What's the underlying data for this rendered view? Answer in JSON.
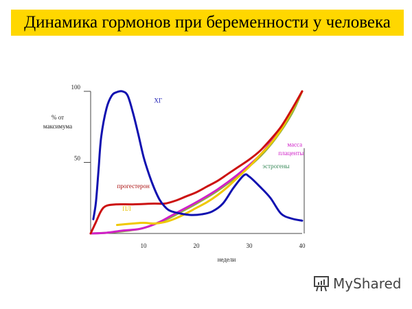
{
  "slide_title": "Динамика гормонов при беременности у человека",
  "watermark": "MyShared",
  "chart_data": {
    "type": "line",
    "title": "",
    "xlabel": "недели",
    "ylabel": "% от максимума",
    "xlim": [
      0,
      40
    ],
    "ylim": [
      0,
      100
    ],
    "x_ticks": [
      "10",
      "20",
      "30",
      "40"
    ],
    "x_tick_values": [
      10,
      20,
      30,
      40
    ],
    "y_ticks": [
      "50",
      "100"
    ],
    "y_tick_values": [
      50,
      100
    ],
    "grid": false,
    "series": [
      {
        "name": "ХГ",
        "color": "#1010b0",
        "points": [
          [
            0.5,
            10
          ],
          [
            1,
            22
          ],
          [
            1.5,
            45
          ],
          [
            2,
            68
          ],
          [
            3,
            88
          ],
          [
            4,
            97
          ],
          [
            5,
            99.5
          ],
          [
            6,
            100
          ],
          [
            7,
            97
          ],
          [
            8,
            85
          ],
          [
            9,
            70
          ],
          [
            10,
            54
          ],
          [
            11,
            42
          ],
          [
            12,
            32
          ],
          [
            13,
            24
          ],
          [
            14,
            19
          ],
          [
            15,
            16
          ],
          [
            17,
            14
          ],
          [
            19,
            13
          ],
          [
            21,
            13.5
          ],
          [
            23,
            15.5
          ],
          [
            25,
            21
          ],
          [
            27,
            32
          ],
          [
            29,
            41
          ],
          [
            30,
            40
          ],
          [
            32,
            33
          ],
          [
            34,
            25
          ],
          [
            36,
            14
          ],
          [
            38,
            10.5
          ],
          [
            40,
            9
          ]
        ]
      },
      {
        "name": "прогестерон",
        "color": "#cc1010",
        "points": [
          [
            0,
            0
          ],
          [
            1,
            8
          ],
          [
            2,
            16
          ],
          [
            3,
            19.5
          ],
          [
            5,
            20.5
          ],
          [
            8,
            20.5
          ],
          [
            12,
            21
          ],
          [
            14,
            21
          ],
          [
            16,
            23
          ],
          [
            18,
            26
          ],
          [
            20,
            29
          ],
          [
            22,
            33
          ],
          [
            24,
            37
          ],
          [
            26,
            42
          ],
          [
            28,
            47
          ],
          [
            30,
            52
          ],
          [
            32,
            58
          ],
          [
            34,
            66
          ],
          [
            36,
            75
          ],
          [
            38,
            87
          ],
          [
            40,
            100
          ]
        ]
      },
      {
        "name": "ПЛ",
        "color": "#f0c800",
        "points": [
          [
            5,
            6
          ],
          [
            8,
            7
          ],
          [
            10,
            7.5
          ],
          [
            12,
            7
          ],
          [
            14,
            8
          ],
          [
            16,
            10.5
          ],
          [
            18,
            14
          ],
          [
            20,
            18
          ],
          [
            22,
            22
          ],
          [
            24,
            27
          ],
          [
            26,
            33
          ],
          [
            28,
            40
          ],
          [
            30,
            47
          ],
          [
            32,
            55
          ],
          [
            34,
            63
          ],
          [
            36,
            73
          ],
          [
            38,
            86
          ],
          [
            40,
            100
          ]
        ]
      },
      {
        "name": "масса плаценты",
        "color": "#d020c8",
        "points": [
          [
            0,
            0
          ],
          [
            3,
            0.5
          ],
          [
            6,
            2
          ],
          [
            9,
            3
          ],
          [
            11,
            5
          ],
          [
            13,
            8
          ],
          [
            15,
            12
          ],
          [
            17,
            16
          ],
          [
            20,
            22
          ],
          [
            24,
            31
          ],
          [
            28,
            42
          ],
          [
            32,
            55
          ],
          [
            35,
            69
          ],
          [
            37,
            80
          ],
          [
            40,
            100
          ]
        ]
      },
      {
        "name": "эстрогены",
        "color": "#8fb040",
        "points": [
          [
            0,
            0
          ],
          [
            3,
            0.5
          ],
          [
            6,
            1.5
          ],
          [
            9,
            3
          ],
          [
            11,
            5
          ],
          [
            13,
            8
          ],
          [
            15,
            11
          ],
          [
            17,
            15
          ],
          [
            20,
            21
          ],
          [
            24,
            30
          ],
          [
            28,
            41
          ],
          [
            32,
            54
          ],
          [
            35,
            67
          ],
          [
            38,
            84
          ],
          [
            40,
            100
          ]
        ]
      }
    ],
    "labels": [
      {
        "text": "ХГ",
        "color": "#1010b0",
        "x": 12,
        "y": 92
      },
      {
        "text": "прогестерон",
        "color": "#aa1010",
        "x": 5,
        "y": 32
      },
      {
        "text": "ПЛ",
        "color": "#e8c000",
        "x": 6,
        "y": 16
      },
      {
        "text": "масса",
        "color": "#d020c8",
        "x": 37.2,
        "y": 61
      },
      {
        "text": "плаценты",
        "color": "#d020c8",
        "x": 35.5,
        "y": 55
      },
      {
        "text": "эстрогены",
        "color": "#3a8a5a",
        "x": 32.5,
        "y": 46
      }
    ]
  }
}
